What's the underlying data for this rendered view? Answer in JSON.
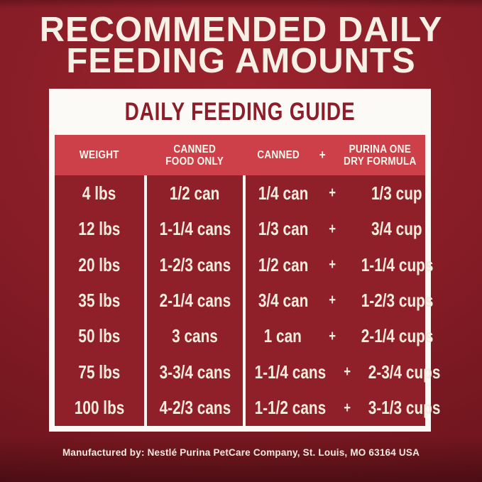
{
  "header": {
    "title_line1": "RECOMMENDED DAILY",
    "title_line2": "FEEDING AMOUNTS"
  },
  "guide": {
    "title": "DAILY FEEDING GUIDE",
    "columns": {
      "weight": "WEIGHT",
      "canned_only_line1": "CANNED",
      "canned_only_line2": "FOOD ONLY",
      "canned": "CANNED",
      "plus": "+",
      "dry_line1": "PURINA ONE",
      "dry_line2": "DRY FORMULA"
    },
    "rows": [
      {
        "weight": "4 lbs",
        "canned_only": "1/2 can",
        "canned": "1/4 can",
        "plus": "+",
        "dry": "1/3 cup"
      },
      {
        "weight": "12 lbs",
        "canned_only": "1-1/4 cans",
        "canned": "1/3 can",
        "plus": "+",
        "dry": "3/4 cup"
      },
      {
        "weight": "20 lbs",
        "canned_only": "1-2/3 cans",
        "canned": "1/2 can",
        "plus": "+",
        "dry": "1-1/4 cups"
      },
      {
        "weight": "35 lbs",
        "canned_only": "2-1/4 cans",
        "canned": "3/4 can",
        "plus": "+",
        "dry": "1-2/3 cups"
      },
      {
        "weight": "50 lbs",
        "canned_only": "3 cans",
        "canned": "1 can",
        "plus": "+",
        "dry": "2-1/4 cups"
      },
      {
        "weight": "75 lbs",
        "canned_only": "3-3/4 cans",
        "canned": "1-1/4 cans",
        "plus": "+",
        "dry": "2-3/4 cups"
      },
      {
        "weight": "100 lbs",
        "canned_only": "4-2/3 cans",
        "canned": "1-1/2 cans",
        "plus": "+",
        "dry": "3-1/3 cups"
      }
    ]
  },
  "footer": {
    "text": "Manufactured by: Nestlé Purina PetCare Company, St. Louis, MO 63164 USA"
  },
  "colors": {
    "page_background": "#841c25",
    "table_body_red": "#8f202a",
    "header_band_red": "#ce4049",
    "guide_title_red": "#8d1e29",
    "panel_white": "#fbfaf6",
    "text_cream": "#f4ecdc"
  }
}
